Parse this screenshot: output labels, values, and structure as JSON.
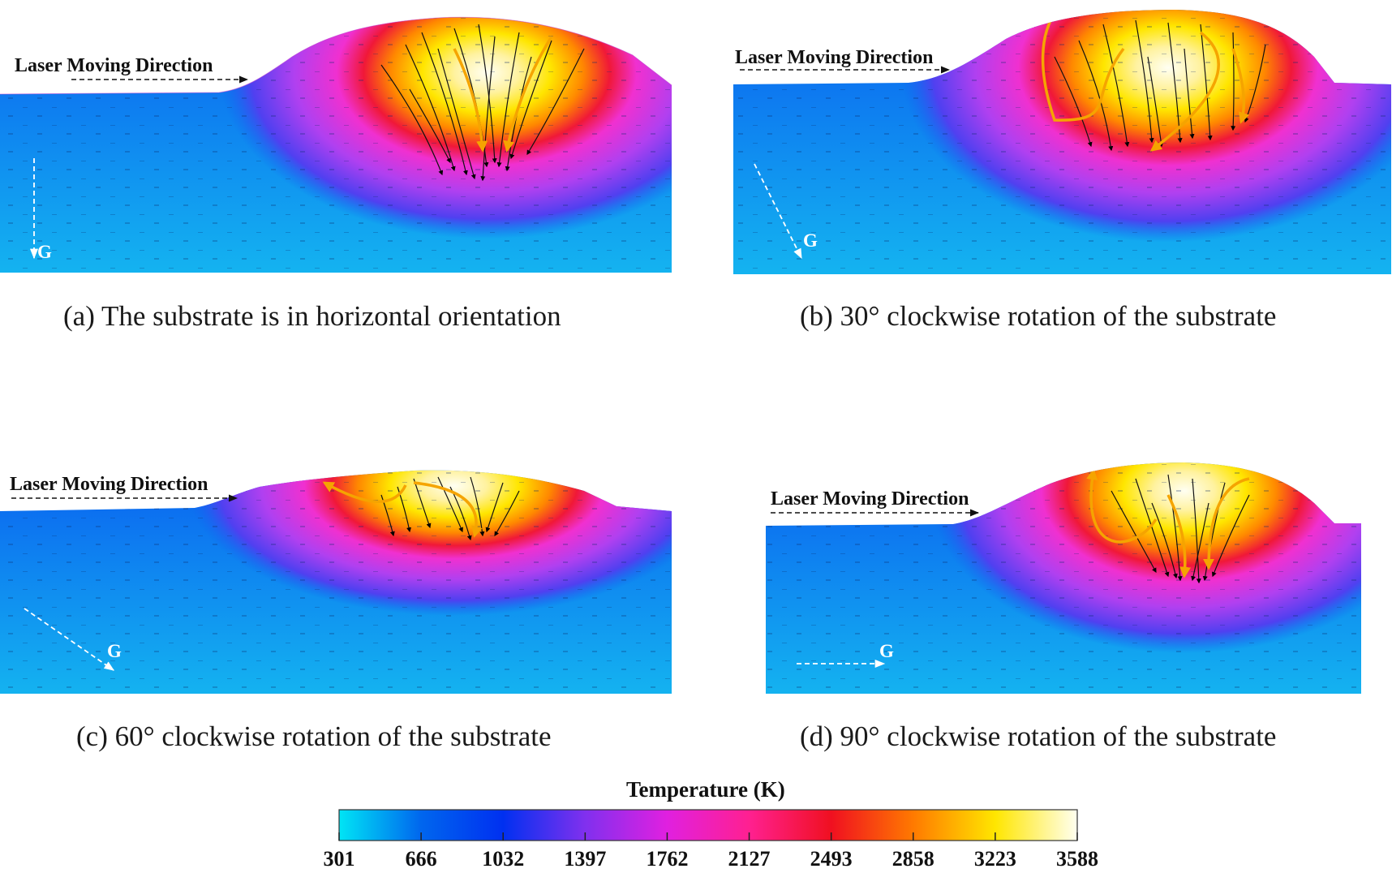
{
  "panels": [
    {
      "id": "a",
      "caption": "(a) The substrate is in horizontal orientation",
      "laser_label": "Laser Moving Direction",
      "gravity_label": "G"
    },
    {
      "id": "b",
      "caption": "(b) 30° clockwise rotation of the substrate",
      "laser_label": "Laser Moving Direction",
      "gravity_label": "G"
    },
    {
      "id": "c",
      "caption": "(c) 60° clockwise rotation of the substrate",
      "laser_label": "Laser Moving Direction",
      "gravity_label": "G"
    },
    {
      "id": "d",
      "caption": "(d) 90° clockwise rotation of the substrate",
      "laser_label": "Laser Moving Direction",
      "gravity_label": "G"
    }
  ],
  "colorbar": {
    "title": "Temperature (K)",
    "ticks": [
      "301",
      "666",
      "1032",
      "1397",
      "1762",
      "2127",
      "2493",
      "2858",
      "3223",
      "3588"
    ],
    "colors": [
      "#00e5f5",
      "#0066ee",
      "#0030f0",
      "#8030ee",
      "#e020e0",
      "#ff2090",
      "#f01020",
      "#ff7a00",
      "#ffe600",
      "#fffff0"
    ]
  }
}
